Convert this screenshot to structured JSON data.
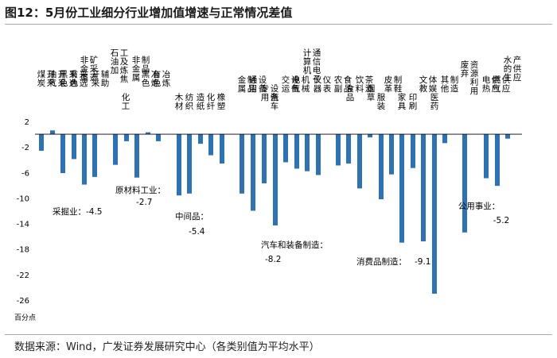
{
  "title": "图12：5月份工业细分行业增加值增速与正常情况差值",
  "source": "数据来源：Wind，广发证券发展研究中心（各类别值为平均水平）",
  "chart_data": {
    "type": "bar",
    "ylabel": "百分点",
    "ylim": [
      -26,
      2
    ],
    "yticks": [
      2,
      -2,
      -6,
      -10,
      -14,
      -18,
      -22,
      -26
    ],
    "bar_color": "#2b73b6",
    "categories": [
      "煤炭开采",
      "油气开采",
      "黑色采选",
      "有色采选",
      "非金属矿采选",
      "开采辅助",
      "石油加工及炼焦",
      "化工",
      "非金属制品",
      "黑色冶炼",
      "有色冶炼",
      "木材",
      "纺织",
      "造纸",
      "化纤",
      "橡塑",
      "金属制品",
      "通用设备",
      "专用设备",
      "汽车",
      "交运设备",
      "电气机械",
      "计算机通信电子",
      "仪器仪表",
      "农副食品",
      "食品",
      "饮料茶酒",
      "烟草",
      "服装",
      "皮革制鞋",
      "家具",
      "印刷",
      "文教体娱",
      "医药",
      "其他制造",
      "废弃资源利用",
      "电热供应",
      "燃气供应",
      "水的生产供应"
    ],
    "values": [
      -2.6,
      0.6,
      -6.1,
      -3.9,
      -7.9,
      -6.7,
      -4.8,
      -1.1,
      -6.8,
      0.3,
      -1.1,
      -9.6,
      -9.3,
      -1.5,
      -3.3,
      -4.6,
      -9.3,
      -12.0,
      -7.7,
      -14.3,
      -4.4,
      -5.4,
      -5.8,
      -6.4,
      -4.9,
      -4.6,
      -8.5,
      -0.5,
      -10.2,
      -6.3,
      -17.0,
      -5.3,
      -16.8,
      -25.0,
      -1.4,
      -15.4,
      -6.9,
      -8.1,
      -0.7
    ],
    "group_averages": [
      {
        "name": "采掘业",
        "label": "采掘业：",
        "value": "-4.5"
      },
      {
        "name": "原材料工业",
        "label": "原材料工业：",
        "value": "-2.7"
      },
      {
        "name": "中间品",
        "label": "中间品：",
        "value": "-5.4"
      },
      {
        "name": "汽车和装备制造",
        "label": "汽车和装备制造：",
        "value": "-8.2"
      },
      {
        "name": "消费品制造",
        "label": "消费品制造：",
        "value": "-9.1"
      },
      {
        "name": "公用事业",
        "label": "公用事业：",
        "value": "-5.2"
      }
    ]
  }
}
